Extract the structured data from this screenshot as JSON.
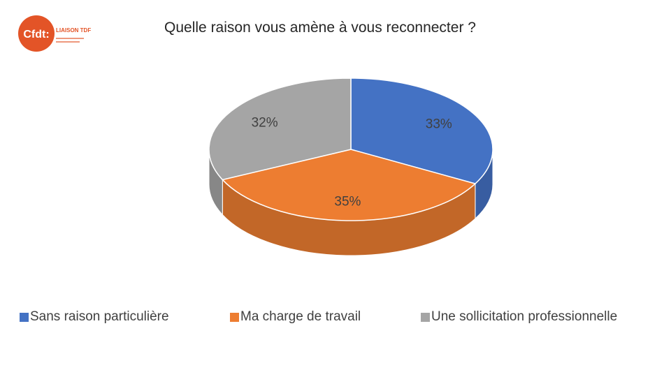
{
  "logo": {
    "mark_text": "Cfdt:",
    "side_text": "LIAISON TDF"
  },
  "chart_data": {
    "type": "pie",
    "title": "Quelle raison vous amène à vous reconnecter ?",
    "slices": [
      {
        "name": "Sans raison particulière",
        "value": 33,
        "label": "33%",
        "color": "#4472C4"
      },
      {
        "name": "Ma charge de travail",
        "value": 35,
        "label": "35%",
        "color": "#ED7D31"
      },
      {
        "name": "Une sollicitation professionnelle",
        "value": 32,
        "label": "32%",
        "color": "#A5A5A5"
      }
    ],
    "legend_position": "bottom",
    "style": "3d"
  }
}
